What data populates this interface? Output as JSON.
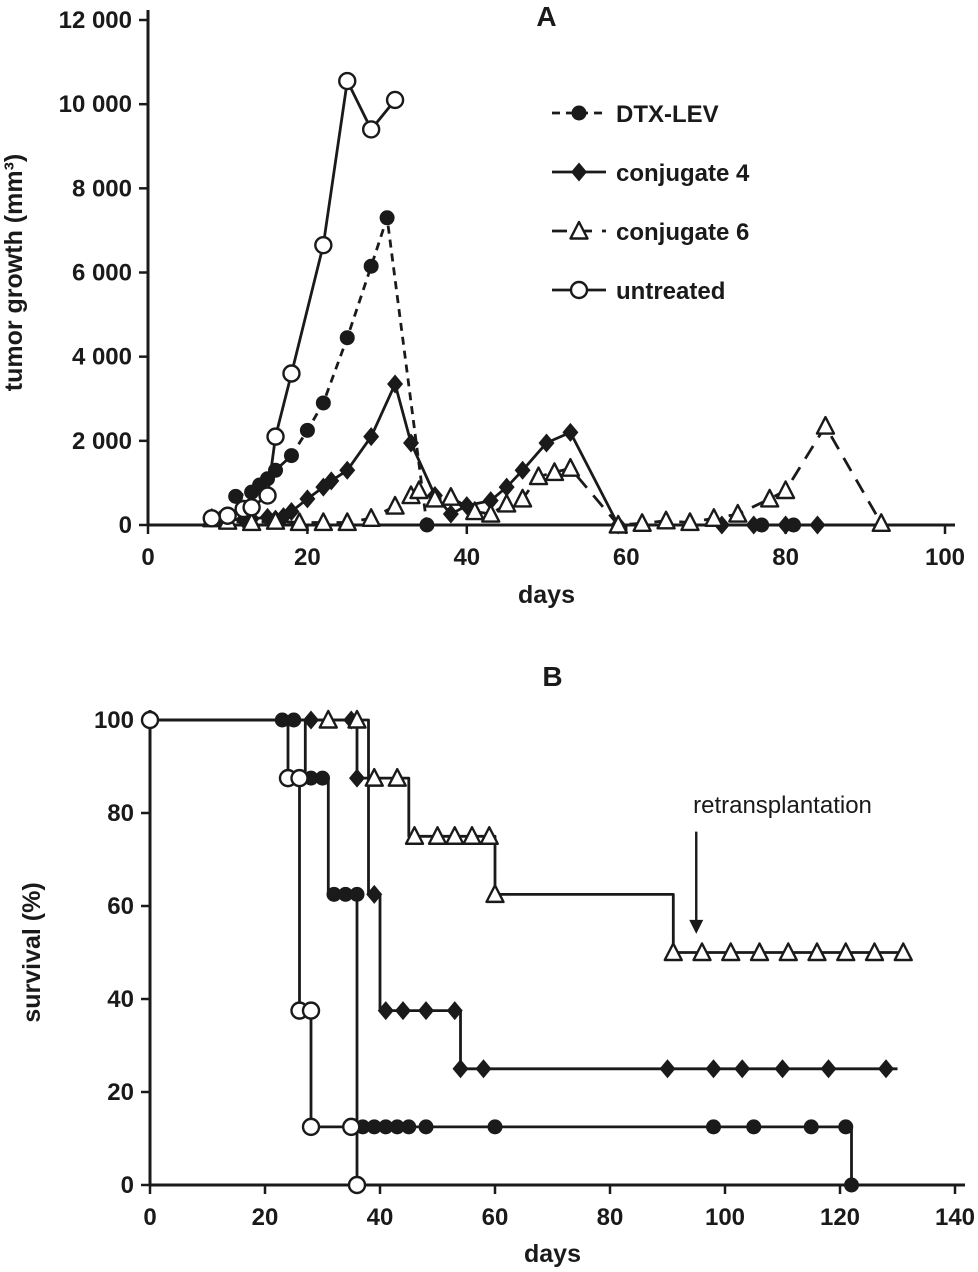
{
  "figure": {
    "background": "#ffffff",
    "ink": "#1a1a1a",
    "panels": [
      "A",
      "B"
    ]
  },
  "chart_data": [
    {
      "id": "panel-a",
      "type": "line",
      "title": "A",
      "xlabel": "days",
      "ylabel": "tumor growth (mm³)",
      "xlim": [
        0,
        100
      ],
      "ylim": [
        0,
        12000
      ],
      "grid": false,
      "legend_position": "upper-right",
      "xticks": [
        {
          "v": 0,
          "label": "0"
        },
        {
          "v": 20,
          "label": "20"
        },
        {
          "v": 40,
          "label": "40"
        },
        {
          "v": 60,
          "label": "60"
        },
        {
          "v": 80,
          "label": "80"
        },
        {
          "v": 100,
          "label": "100"
        }
      ],
      "yticks": [
        {
          "v": 0,
          "label": "0"
        },
        {
          "v": 2000,
          "label": "2 000"
        },
        {
          "v": 4000,
          "label": "4 000"
        },
        {
          "v": 6000,
          "label": "6 000"
        },
        {
          "v": 8000,
          "label": "8 000"
        },
        {
          "v": 10000,
          "label": "10 000"
        },
        {
          "v": 12000,
          "label": "12 000"
        }
      ],
      "legend": {
        "items": [
          "DTX-LEV",
          "conjugate 4",
          "conjugate 6",
          "untreated"
        ]
      },
      "series": [
        {
          "name": "DTX-LEV",
          "marker": "circle-filled",
          "line": "dashed",
          "points": [
            [
              11,
              680
            ],
            [
              13,
              780
            ],
            [
              14,
              950
            ],
            [
              15,
              1100
            ],
            [
              16,
              1300
            ],
            [
              18,
              1650
            ],
            [
              20,
              2250
            ],
            [
              22,
              2900
            ],
            [
              25,
              4450
            ],
            [
              28,
              6150
            ],
            [
              30,
              7300
            ],
            [
              35,
              0
            ],
            [
              77,
              0
            ],
            [
              81,
              0
            ]
          ]
        },
        {
          "name": "conjugate 4",
          "marker": "diamond-filled",
          "line": "solid",
          "points": [
            [
              9,
              120
            ],
            [
              12,
              130
            ],
            [
              13,
              150
            ],
            [
              15,
              180
            ],
            [
              16,
              140
            ],
            [
              17,
              200
            ],
            [
              18,
              320
            ],
            [
              20,
              620
            ],
            [
              22,
              900
            ],
            [
              23,
              1050
            ],
            [
              25,
              1300
            ],
            [
              28,
              2100
            ],
            [
              31,
              3350
            ],
            [
              33,
              1950
            ],
            [
              36,
              700
            ],
            [
              38,
              260
            ],
            [
              40,
              460
            ],
            [
              43,
              580
            ],
            [
              45,
              900
            ],
            [
              47,
              1300
            ],
            [
              50,
              1950
            ],
            [
              53,
              2200
            ],
            [
              59,
              0
            ],
            [
              72,
              0
            ],
            [
              76,
              0
            ],
            [
              80,
              0
            ],
            [
              84,
              0
            ]
          ]
        },
        {
          "name": "conjugate 6",
          "marker": "triangle-open",
          "line": "longdash",
          "points": [
            [
              8,
              150
            ],
            [
              10,
              90
            ],
            [
              13,
              60
            ],
            [
              16,
              90
            ],
            [
              19,
              60
            ],
            [
              22,
              60
            ],
            [
              25,
              60
            ],
            [
              28,
              160
            ],
            [
              31,
              450
            ],
            [
              33,
              700
            ],
            [
              34,
              820
            ],
            [
              36,
              620
            ],
            [
              38,
              660
            ],
            [
              41,
              320
            ],
            [
              43,
              260
            ],
            [
              45,
              500
            ],
            [
              47,
              620
            ],
            [
              49,
              1150
            ],
            [
              51,
              1250
            ],
            [
              53,
              1350
            ],
            [
              59,
              0
            ],
            [
              62,
              40
            ],
            [
              65,
              100
            ],
            [
              68,
              60
            ],
            [
              71,
              160
            ],
            [
              74,
              260
            ],
            [
              78,
              620
            ],
            [
              80,
              820
            ],
            [
              85,
              2350
            ],
            [
              92,
              40
            ]
          ]
        },
        {
          "name": "untreated",
          "marker": "circle-open",
          "line": "solid",
          "points": [
            [
              8,
              160
            ],
            [
              10,
              220
            ],
            [
              12,
              380
            ],
            [
              13,
              420
            ],
            [
              15,
              700
            ],
            [
              16,
              2100
            ],
            [
              18,
              3600
            ],
            [
              22,
              6650
            ],
            [
              25,
              10550
            ],
            [
              28,
              9400
            ],
            [
              31,
              10100
            ]
          ]
        }
      ]
    },
    {
      "id": "panel-b",
      "type": "step",
      "title": "B",
      "xlabel": "days",
      "ylabel": "survival (%)",
      "xlim": [
        0,
        140
      ],
      "ylim": [
        0,
        100
      ],
      "grid": false,
      "xticks": [
        {
          "v": 0,
          "label": "0"
        },
        {
          "v": 20,
          "label": "20"
        },
        {
          "v": 40,
          "label": "40"
        },
        {
          "v": 60,
          "label": "60"
        },
        {
          "v": 80,
          "label": "80"
        },
        {
          "v": 100,
          "label": "100"
        },
        {
          "v": 120,
          "label": "120"
        },
        {
          "v": 140,
          "label": "140"
        }
      ],
      "yticks": [
        {
          "v": 0,
          "label": "0"
        },
        {
          "v": 20,
          "label": "20"
        },
        {
          "v": 40,
          "label": "40"
        },
        {
          "v": 60,
          "label": "60"
        },
        {
          "v": 80,
          "label": "80"
        },
        {
          "v": 100,
          "label": "100"
        }
      ],
      "annotation": {
        "text": "retransplantation",
        "text_x": 110,
        "text_y": 80,
        "arrow_x": 95,
        "y_from": 76,
        "y_to": 54
      },
      "series": [
        {
          "name": "DTX-LEV",
          "marker": "circle-filled",
          "line": "solid",
          "steps": [
            [
              0,
              100
            ],
            [
              27,
              87.5
            ],
            [
              31,
              62.5
            ],
            [
              36,
              12.5
            ],
            [
              122,
              0
            ]
          ],
          "markers": [
            [
              0,
              100
            ],
            [
              23,
              100
            ],
            [
              25,
              100
            ],
            [
              28,
              87.5
            ],
            [
              30,
              87.5
            ],
            [
              32,
              62.5
            ],
            [
              34,
              62.5
            ],
            [
              36,
              62.5
            ],
            [
              37,
              12.5
            ],
            [
              39,
              12.5
            ],
            [
              41,
              12.5
            ],
            [
              43,
              12.5
            ],
            [
              45,
              12.5
            ],
            [
              48,
              12.5
            ],
            [
              60,
              12.5
            ],
            [
              98,
              12.5
            ],
            [
              105,
              12.5
            ],
            [
              115,
              12.5
            ],
            [
              121,
              12.5
            ],
            [
              122,
              0
            ]
          ]
        },
        {
          "name": "conjugate 4",
          "marker": "diamond-filled",
          "line": "solid",
          "steps": [
            [
              0,
              100
            ],
            [
              36,
              87.5
            ],
            [
              38,
              62.5
            ],
            [
              40,
              37.5
            ],
            [
              54,
              25
            ]
          ],
          "xend": 130,
          "markers": [
            [
              28,
              100
            ],
            [
              35,
              100
            ],
            [
              36,
              87.5
            ],
            [
              39,
              62.5
            ],
            [
              41,
              37.5
            ],
            [
              44,
              37.5
            ],
            [
              48,
              37.5
            ],
            [
              53,
              37.5
            ],
            [
              54,
              25
            ],
            [
              58,
              25
            ],
            [
              90,
              25
            ],
            [
              98,
              25
            ],
            [
              103,
              25
            ],
            [
              110,
              25
            ],
            [
              118,
              25
            ],
            [
              128,
              25
            ]
          ]
        },
        {
          "name": "conjugate 6",
          "marker": "triangle-open",
          "line": "solid",
          "steps": [
            [
              0,
              100
            ],
            [
              38,
              87.5
            ],
            [
              45,
              75
            ],
            [
              60,
              62.5
            ],
            [
              91,
              50
            ]
          ],
          "xend": 131,
          "markers": [
            [
              31,
              100
            ],
            [
              36,
              100
            ],
            [
              39,
              87.5
            ],
            [
              43,
              87.5
            ],
            [
              46,
              75
            ],
            [
              50,
              75
            ],
            [
              53,
              75
            ],
            [
              56,
              75
            ],
            [
              59,
              75
            ],
            [
              60,
              62.5
            ],
            [
              91,
              50
            ],
            [
              96,
              50
            ],
            [
              101,
              50
            ],
            [
              106,
              50
            ],
            [
              111,
              50
            ],
            [
              116,
              50
            ],
            [
              121,
              50
            ],
            [
              126,
              50
            ],
            [
              131,
              50
            ]
          ]
        },
        {
          "name": "untreated",
          "marker": "circle-open",
          "line": "solid",
          "steps": [
            [
              0,
              100
            ],
            [
              24,
              87.5
            ],
            [
              26,
              37.5
            ],
            [
              28,
              12.5
            ],
            [
              36,
              0
            ]
          ],
          "markers": [
            [
              0,
              100
            ],
            [
              24,
              87.5
            ],
            [
              26,
              87.5
            ],
            [
              26,
              37.5
            ],
            [
              28,
              37.5
            ],
            [
              28,
              12.5
            ],
            [
              35,
              12.5
            ],
            [
              36,
              0
            ]
          ]
        }
      ]
    }
  ]
}
